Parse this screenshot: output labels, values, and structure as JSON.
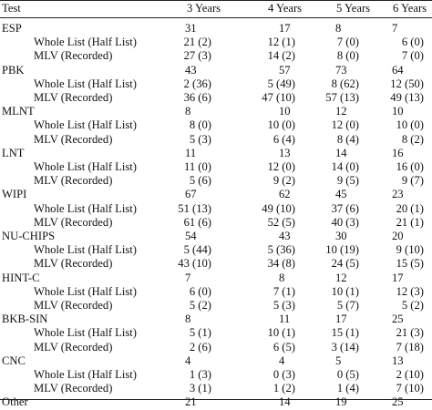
{
  "table": {
    "headers": [
      "Test",
      "3 Years",
      "4 Years",
      "5 Years",
      "6 Years"
    ],
    "rows": [
      {
        "kind": "group",
        "label": "ESP",
        "v": [
          "31",
          "17",
          "8",
          "7"
        ]
      },
      {
        "kind": "sub",
        "label": "Whole List (Half List)",
        "v": [
          "21 (2)",
          "12 (1)",
          "7 (0)",
          "6 (0)"
        ]
      },
      {
        "kind": "sub",
        "label": "MLV (Recorded)",
        "v": [
          "27 (3)",
          "14 (2)",
          "8 (0)",
          "7 (0)"
        ]
      },
      {
        "kind": "group",
        "label": "PBK",
        "v": [
          "43",
          "57",
          "73",
          "64"
        ]
      },
      {
        "kind": "sub",
        "label": "Whole List (Half List)",
        "v": [
          "2 (36)",
          "5 (49)",
          "8 (62)",
          "12 (50)"
        ]
      },
      {
        "kind": "sub",
        "label": "MLV (Recorded)",
        "v": [
          "36 (6)",
          "47 (10)",
          "57 (13)",
          "49 (13)"
        ]
      },
      {
        "kind": "group",
        "label": "MLNT",
        "v": [
          "8",
          "10",
          "12",
          "10"
        ]
      },
      {
        "kind": "sub",
        "label": "Whole List (Half List)",
        "v": [
          "8 (0)",
          "10 (0)",
          "12 (0)",
          "10 (0)"
        ]
      },
      {
        "kind": "sub",
        "label": "MLV (Recorded)",
        "v": [
          "5 (3)",
          "6 (4)",
          "8 (4)",
          "8 (2)"
        ]
      },
      {
        "kind": "group",
        "label": "LNT",
        "v": [
          "11",
          "13",
          "14",
          "16"
        ]
      },
      {
        "kind": "sub",
        "label": "Whole List (Half List)",
        "v": [
          "11 (0)",
          "12 (0)",
          "14 (0)",
          "16 (0)"
        ]
      },
      {
        "kind": "sub",
        "label": "MLV (Recorded)",
        "v": [
          "5 (6)",
          "9 (2)",
          "9 (5)",
          "9 (7)"
        ]
      },
      {
        "kind": "group",
        "label": "WIPI",
        "v": [
          "67",
          "62",
          "45",
          "23"
        ]
      },
      {
        "kind": "sub",
        "label": "Whole List (Half List)",
        "v": [
          "51 (13)",
          "49 (10)",
          "37 (6)",
          "20 (1)"
        ]
      },
      {
        "kind": "sub",
        "label": "MLV (Recorded)",
        "v": [
          "61 (6)",
          "52 (5)",
          "40 (3)",
          "21 (1)"
        ]
      },
      {
        "kind": "group",
        "label": "NU-CHIPS",
        "v": [
          "54",
          "43",
          "30",
          "20"
        ]
      },
      {
        "kind": "sub",
        "label": "Whole List (Half List)",
        "v": [
          "5 (44)",
          "5 (36)",
          "10 (19)",
          "9 (10)"
        ]
      },
      {
        "kind": "sub",
        "label": "MLV (Recorded)",
        "v": [
          "43 (10)",
          "34 (8)",
          "24 (5)",
          "15 (5)"
        ]
      },
      {
        "kind": "group",
        "label": "HINT-C",
        "v": [
          "7",
          "8",
          "12",
          "17"
        ]
      },
      {
        "kind": "sub",
        "label": "Whole List (Half List)",
        "v": [
          "6 (0)",
          "7 (1)",
          "10 (1)",
          "12 (3)"
        ]
      },
      {
        "kind": "sub",
        "label": "MLV (Recorded)",
        "v": [
          "5 (2)",
          "5 (3)",
          "5 (7)",
          "5 (2)"
        ]
      },
      {
        "kind": "group",
        "label": "BKB-SIN",
        "v": [
          "8",
          "11",
          "17",
          "25"
        ]
      },
      {
        "kind": "sub",
        "label": "Whole List (Half List)",
        "v": [
          "5 (1)",
          "10 (1)",
          "15 (1)",
          "21 (3)"
        ]
      },
      {
        "kind": "sub",
        "label": "MLV (Recorded)",
        "v": [
          "2 (6)",
          "6 (5)",
          "3 (14)",
          "7 (18)"
        ]
      },
      {
        "kind": "group",
        "label": "CNC",
        "v": [
          "4",
          "4",
          "5",
          "13"
        ]
      },
      {
        "kind": "sub",
        "label": "Whole List (Half List)",
        "v": [
          "1 (3)",
          "0 (3)",
          "0 (5)",
          "2 (10)"
        ]
      },
      {
        "kind": "sub",
        "label": "MLV (Recorded)",
        "v": [
          "3 (1)",
          "1 (2)",
          "1 (4)",
          "7 (10)"
        ]
      },
      {
        "kind": "group",
        "label": "Other",
        "v": [
          "21",
          "14",
          "19",
          "25"
        ]
      }
    ]
  }
}
